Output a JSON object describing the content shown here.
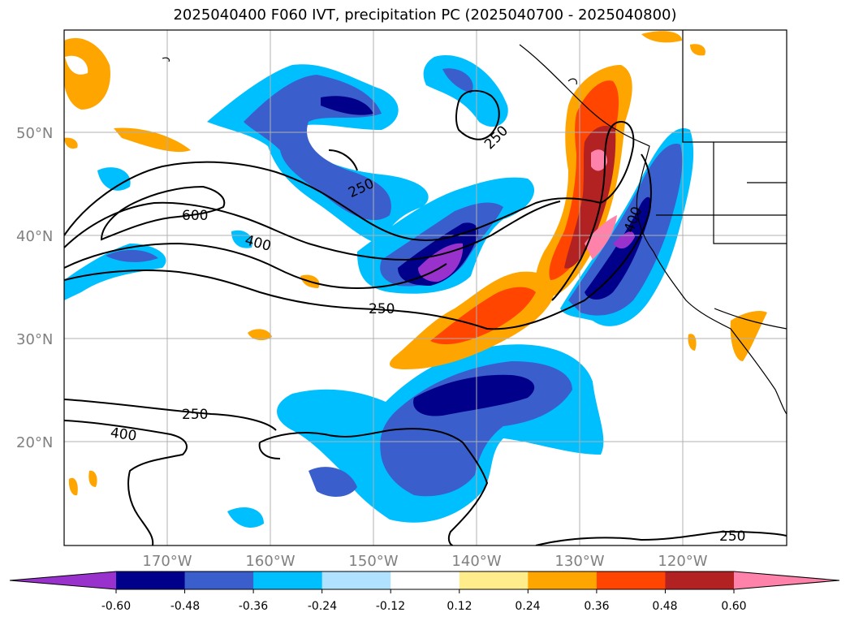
{
  "title": "2025040400 F060 IVT, precipitation PC (2025040700 - 2025040800)",
  "map": {
    "lat_labels": [
      "50°N",
      "40°N",
      "30°N",
      "20°N"
    ],
    "lon_labels": [
      "170°W",
      "160°W",
      "150°W",
      "140°W",
      "130°W",
      "120°W"
    ],
    "contour_labels": [
      "600",
      "400",
      "250",
      "250",
      "250",
      "400",
      "250",
      "400",
      "250"
    ]
  },
  "colorbar": {
    "ticks": [
      "-0.60",
      "-0.48",
      "-0.36",
      "-0.24",
      "-0.12",
      "0.12",
      "0.24",
      "0.36",
      "0.48",
      "0.60"
    ],
    "colors": [
      "#9932cc",
      "#00008b",
      "#3a5fcd",
      "#00bfff",
      "#b0e2ff",
      "#ffffff",
      "#ffec8b",
      "#ffa500",
      "#ff4500",
      "#b22222",
      "#ff82ab"
    ]
  }
}
